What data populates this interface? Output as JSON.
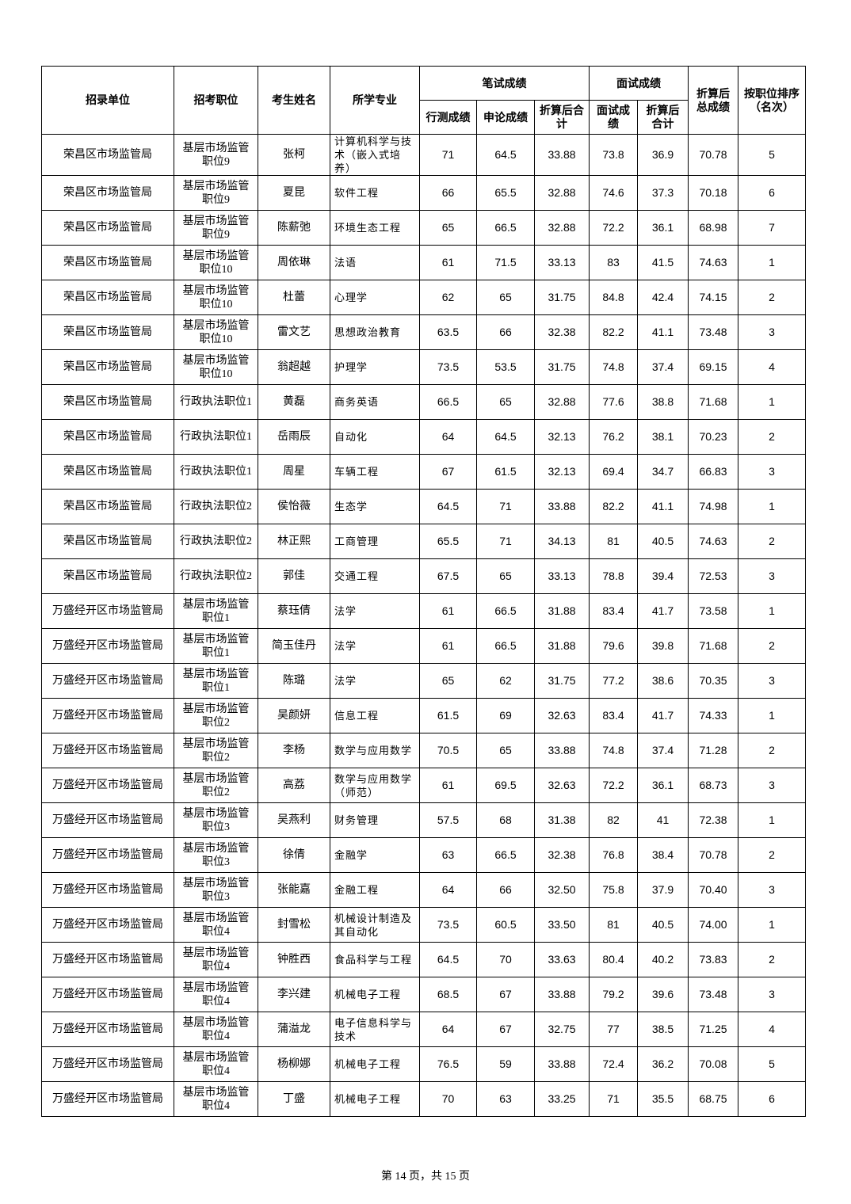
{
  "table": {
    "columns": [
      "招录单位",
      "招考职位",
      "考生姓名",
      "所学专业",
      "笔试成绩",
      "面试成绩",
      "折算后总成绩",
      "按职位排序（名次）"
    ],
    "subcolumns": [
      "行测成绩",
      "申论成绩",
      "折算后合计",
      "面试成绩",
      "折算后合计"
    ],
    "rows": [
      [
        "荣昌区市场监管局",
        "基层市场监管职位9",
        "张柯",
        "计算机科学与技术（嵌入式培养）",
        "71",
        "64.5",
        "33.88",
        "73.8",
        "36.9",
        "70.78",
        "5"
      ],
      [
        "荣昌区市场监管局",
        "基层市场监管职位9",
        "夏昆",
        "软件工程",
        "66",
        "65.5",
        "32.88",
        "74.6",
        "37.3",
        "70.18",
        "6"
      ],
      [
        "荣昌区市场监管局",
        "基层市场监管职位9",
        "陈薪弛",
        "环境生态工程",
        "65",
        "66.5",
        "32.88",
        "72.2",
        "36.1",
        "68.98",
        "7"
      ],
      [
        "荣昌区市场监管局",
        "基层市场监管职位10",
        "周依琳",
        "法语",
        "61",
        "71.5",
        "33.13",
        "83",
        "41.5",
        "74.63",
        "1"
      ],
      [
        "荣昌区市场监管局",
        "基层市场监管职位10",
        "杜蕾",
        "心理学",
        "62",
        "65",
        "31.75",
        "84.8",
        "42.4",
        "74.15",
        "2"
      ],
      [
        "荣昌区市场监管局",
        "基层市场监管职位10",
        "雷文艺",
        "思想政治教育",
        "63.5",
        "66",
        "32.38",
        "82.2",
        "41.1",
        "73.48",
        "3"
      ],
      [
        "荣昌区市场监管局",
        "基层市场监管职位10",
        "翁超越",
        "护理学",
        "73.5",
        "53.5",
        "31.75",
        "74.8",
        "37.4",
        "69.15",
        "4"
      ],
      [
        "荣昌区市场监管局",
        "行政执法职位1",
        "黄磊",
        "商务英语",
        "66.5",
        "65",
        "32.88",
        "77.6",
        "38.8",
        "71.68",
        "1"
      ],
      [
        "荣昌区市场监管局",
        "行政执法职位1",
        "岳雨辰",
        "自动化",
        "64",
        "64.5",
        "32.13",
        "76.2",
        "38.1",
        "70.23",
        "2"
      ],
      [
        "荣昌区市场监管局",
        "行政执法职位1",
        "周星",
        "车辆工程",
        "67",
        "61.5",
        "32.13",
        "69.4",
        "34.7",
        "66.83",
        "3"
      ],
      [
        "荣昌区市场监管局",
        "行政执法职位2",
        "侯怡薇",
        "生态学",
        "64.5",
        "71",
        "33.88",
        "82.2",
        "41.1",
        "74.98",
        "1"
      ],
      [
        "荣昌区市场监管局",
        "行政执法职位2",
        "林正熙",
        "工商管理",
        "65.5",
        "71",
        "34.13",
        "81",
        "40.5",
        "74.63",
        "2"
      ],
      [
        "荣昌区市场监管局",
        "行政执法职位2",
        "郭佳",
        "交通工程",
        "67.5",
        "65",
        "33.13",
        "78.8",
        "39.4",
        "72.53",
        "3"
      ],
      [
        "万盛经开区市场监管局",
        "基层市场监管职位1",
        "蔡珏倩",
        "法学",
        "61",
        "66.5",
        "31.88",
        "83.4",
        "41.7",
        "73.58",
        "1"
      ],
      [
        "万盛经开区市场监管局",
        "基层市场监管职位1",
        "简玉佳丹",
        "法学",
        "61",
        "66.5",
        "31.88",
        "79.6",
        "39.8",
        "71.68",
        "2"
      ],
      [
        "万盛经开区市场监管局",
        "基层市场监管职位1",
        "陈璐",
        "法学",
        "65",
        "62",
        "31.75",
        "77.2",
        "38.6",
        "70.35",
        "3"
      ],
      [
        "万盛经开区市场监管局",
        "基层市场监管职位2",
        "吴颜妍",
        "信息工程",
        "61.5",
        "69",
        "32.63",
        "83.4",
        "41.7",
        "74.33",
        "1"
      ],
      [
        "万盛经开区市场监管局",
        "基层市场监管职位2",
        "李杨",
        "数学与应用数学",
        "70.5",
        "65",
        "33.88",
        "74.8",
        "37.4",
        "71.28",
        "2"
      ],
      [
        "万盛经开区市场监管局",
        "基层市场监管职位2",
        "高荔",
        "数学与应用数学（师范）",
        "61",
        "69.5",
        "32.63",
        "72.2",
        "36.1",
        "68.73",
        "3"
      ],
      [
        "万盛经开区市场监管局",
        "基层市场监管职位3",
        "吴燕利",
        "财务管理",
        "57.5",
        "68",
        "31.38",
        "82",
        "41",
        "72.38",
        "1"
      ],
      [
        "万盛经开区市场监管局",
        "基层市场监管职位3",
        "徐倩",
        "金融学",
        "63",
        "66.5",
        "32.38",
        "76.8",
        "38.4",
        "70.78",
        "2"
      ],
      [
        "万盛经开区市场监管局",
        "基层市场监管职位3",
        "张能嘉",
        "金融工程",
        "64",
        "66",
        "32.50",
        "75.8",
        "37.9",
        "70.40",
        "3"
      ],
      [
        "万盛经开区市场监管局",
        "基层市场监管职位4",
        "封雪松",
        "机械设计制造及其自动化",
        "73.5",
        "60.5",
        "33.50",
        "81",
        "40.5",
        "74.00",
        "1"
      ],
      [
        "万盛经开区市场监管局",
        "基层市场监管职位4",
        "钟胜西",
        "食品科学与工程",
        "64.5",
        "70",
        "33.63",
        "80.4",
        "40.2",
        "73.83",
        "2"
      ],
      [
        "万盛经开区市场监管局",
        "基层市场监管职位4",
        "李兴建",
        "机械电子工程",
        "68.5",
        "67",
        "33.88",
        "79.2",
        "39.6",
        "73.48",
        "3"
      ],
      [
        "万盛经开区市场监管局",
        "基层市场监管职位4",
        "蒲溢龙",
        "电子信息科学与技术",
        "64",
        "67",
        "32.75",
        "77",
        "38.5",
        "71.25",
        "4"
      ],
      [
        "万盛经开区市场监管局",
        "基层市场监管职位4",
        "杨柳娜",
        "机械电子工程",
        "76.5",
        "59",
        "33.88",
        "72.4",
        "36.2",
        "70.08",
        "5"
      ],
      [
        "万盛经开区市场监管局",
        "基层市场监管职位4",
        "丁盛",
        "机械电子工程",
        "70",
        "63",
        "33.25",
        "71",
        "35.5",
        "68.75",
        "6"
      ]
    ]
  },
  "footer": "第 14 页，共 15 页"
}
